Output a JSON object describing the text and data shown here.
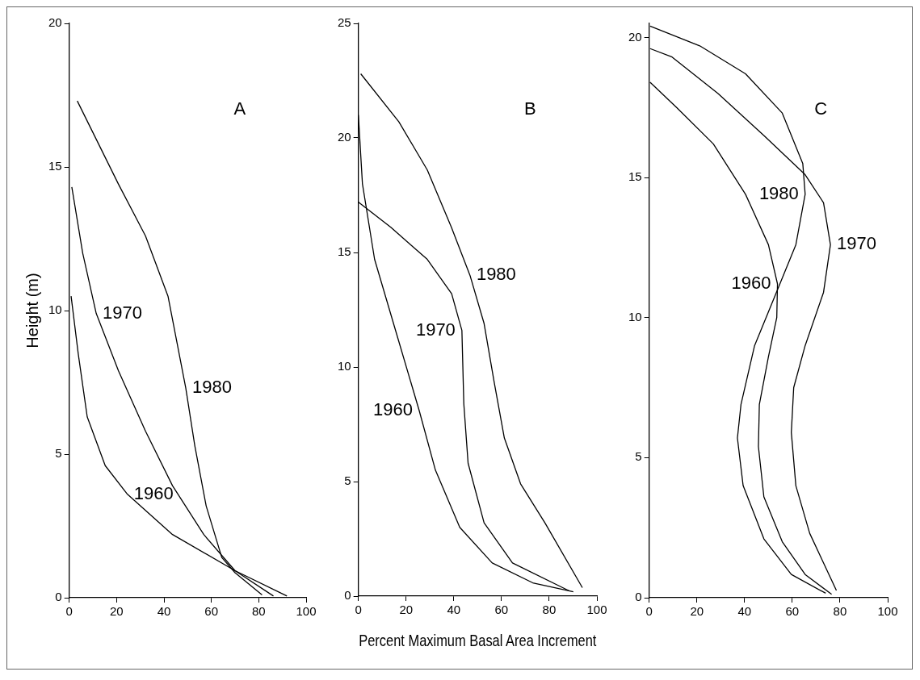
{
  "chart_data": [
    {
      "type": "line",
      "ylabel": "Height (m)",
      "annotations": [
        "A"
      ],
      "xlim": [
        0,
        100
      ],
      "xticks": [
        0,
        20,
        40,
        60,
        80,
        100
      ],
      "ylim": [
        0,
        20
      ],
      "yticks": [
        0,
        5,
        10,
        15,
        20
      ],
      "grid": false,
      "legend": false,
      "marker": "none",
      "line_style": "solid",
      "series": [
        {
          "name": "1980",
          "color": "#000000",
          "x": [
            3.4,
            20.8,
            32.2,
            41.7,
            49.2,
            53,
            57.8,
            64.4,
            70,
            81.4
          ],
          "values": [
            17.3,
            14.4,
            12.6,
            10.5,
            7.3,
            5.3,
            3.2,
            1.4,
            0.87,
            0.1
          ]
        },
        {
          "name": "1970",
          "color": "#000000",
          "x": [
            1.1,
            5.7,
            11.4,
            20.8,
            32.2,
            43.6,
            56.8,
            70,
            86.2
          ],
          "values": [
            14.3,
            12.0,
            9.9,
            7.9,
            5.8,
            3.9,
            2.2,
            0.94,
            0.06
          ]
        },
        {
          "name": "1960",
          "color": "#000000",
          "x": [
            0.8,
            3.8,
            7.6,
            15.2,
            24.6,
            43.6,
            70,
            91.9
          ],
          "values": [
            10.5,
            8.5,
            6.3,
            4.6,
            3.6,
            2.2,
            0.94,
            0.06
          ]
        }
      ]
    },
    {
      "type": "line",
      "xlabel": "Percent Maximum Basal Area Increment",
      "annotations": [
        "B"
      ],
      "xlim": [
        0,
        100
      ],
      "xticks": [
        0,
        20,
        40,
        60,
        80,
        100
      ],
      "ylim": [
        0,
        25
      ],
      "yticks": [
        0,
        5,
        10,
        15,
        20,
        25
      ],
      "grid": false,
      "legend": false,
      "marker": "none",
      "line_style": "solid",
      "series": [
        {
          "name": "1980",
          "color": "#000000",
          "x": [
            1.0,
            17,
            28.9,
            39,
            46.8,
            52.7,
            57,
            61.2,
            68,
            78.2,
            93.9
          ],
          "values": [
            22.8,
            20.7,
            18.6,
            16.1,
            14.0,
            11.9,
            9.3,
            6.9,
            4.9,
            3.2,
            0.37
          ]
        },
        {
          "name": "1970",
          "color": "#000000",
          "x": [
            0,
            13.6,
            28.9,
            39.1,
            43.4,
            44.2,
            46,
            52.7,
            64.6,
            88.4
          ],
          "values": [
            17.2,
            16.1,
            14.7,
            13.2,
            11.6,
            8.4,
            5.8,
            3.2,
            1.45,
            0.23
          ]
        },
        {
          "name": "1960",
          "color": "#000000",
          "x": [
            0,
            1.7,
            6.8,
            17,
            25.5,
            32.3,
            42.5,
            56.1,
            73.1,
            90.1
          ],
          "values": [
            21.0,
            18.0,
            14.7,
            11.1,
            8.1,
            5.5,
            3.0,
            1.45,
            0.58,
            0.19
          ]
        }
      ]
    },
    {
      "type": "line",
      "annotations": [
        "C"
      ],
      "xlim": [
        0,
        100
      ],
      "xticks": [
        0,
        20,
        40,
        60,
        80,
        100
      ],
      "ylim": [
        0,
        20.5
      ],
      "yticks": [
        0,
        5,
        10,
        15,
        20
      ],
      "grid": false,
      "legend": false,
      "marker": "none",
      "line_style": "solid",
      "series": [
        {
          "name": "1980",
          "color": "#000000",
          "x": [
            0.4,
            21.2,
            40.4,
            55.8,
            64.4,
            65.4,
            61.5,
            54.8,
            44.2,
            38.5,
            37,
            39.4,
            48.1,
            59.6,
            74
          ],
          "values": [
            20.4,
            19.7,
            18.7,
            17.3,
            15.5,
            14.4,
            12.6,
            11.2,
            9.0,
            6.9,
            5.7,
            4.0,
            2.1,
            0.83,
            0.16
          ]
        },
        {
          "name": "1970",
          "color": "#000000",
          "x": [
            0.4,
            9.6,
            28.8,
            48.1,
            65.4,
            73.1,
            76,
            73.1,
            65.4,
            60.6,
            59.6,
            61.5,
            67.3,
            78.5
          ],
          "values": [
            19.6,
            19.3,
            18.0,
            16.5,
            15.1,
            14.1,
            12.6,
            10.9,
            9.0,
            7.5,
            5.9,
            4.0,
            2.3,
            0.26
          ]
        },
        {
          "name": "1960",
          "color": "#000000",
          "x": [
            0.4,
            11.5,
            26.9,
            40.4,
            50,
            53.8,
            53.5,
            50,
            46.2,
            45.8,
            48.1,
            55.8,
            65.4,
            76.5
          ],
          "values": [
            18.4,
            17.5,
            16.2,
            14.4,
            12.6,
            11.2,
            10.0,
            8.6,
            6.9,
            5.4,
            3.6,
            2.0,
            0.83,
            0.12
          ]
        }
      ]
    }
  ]
}
